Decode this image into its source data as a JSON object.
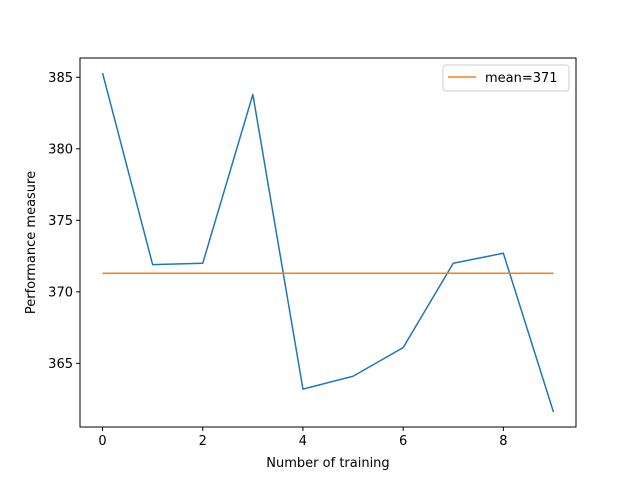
{
  "chart_data": {
    "type": "line",
    "title": "",
    "xlabel": "Number of training",
    "ylabel": "Performance measure",
    "xlim": [
      -0.45,
      9.45
    ],
    "ylim": [
      360.55,
      386.35
    ],
    "xticks": [
      0,
      2,
      4,
      6,
      8
    ],
    "yticks": [
      365,
      370,
      375,
      380,
      385
    ],
    "grid": false,
    "legend_position": "top-right",
    "series": [
      {
        "x": [
          0,
          1,
          2,
          3,
          4,
          5,
          6,
          7,
          8,
          9
        ],
        "values": [
          385.3,
          371.9,
          372.0,
          383.8,
          363.2,
          364.1,
          366.1,
          372.0,
          372.7,
          361.6
        ],
        "color": "#1f77b4"
      },
      {
        "name": "mean=371",
        "x": [
          0,
          9
        ],
        "values": [
          371.3,
          371.3
        ],
        "color": "#ff7f0e"
      }
    ]
  }
}
